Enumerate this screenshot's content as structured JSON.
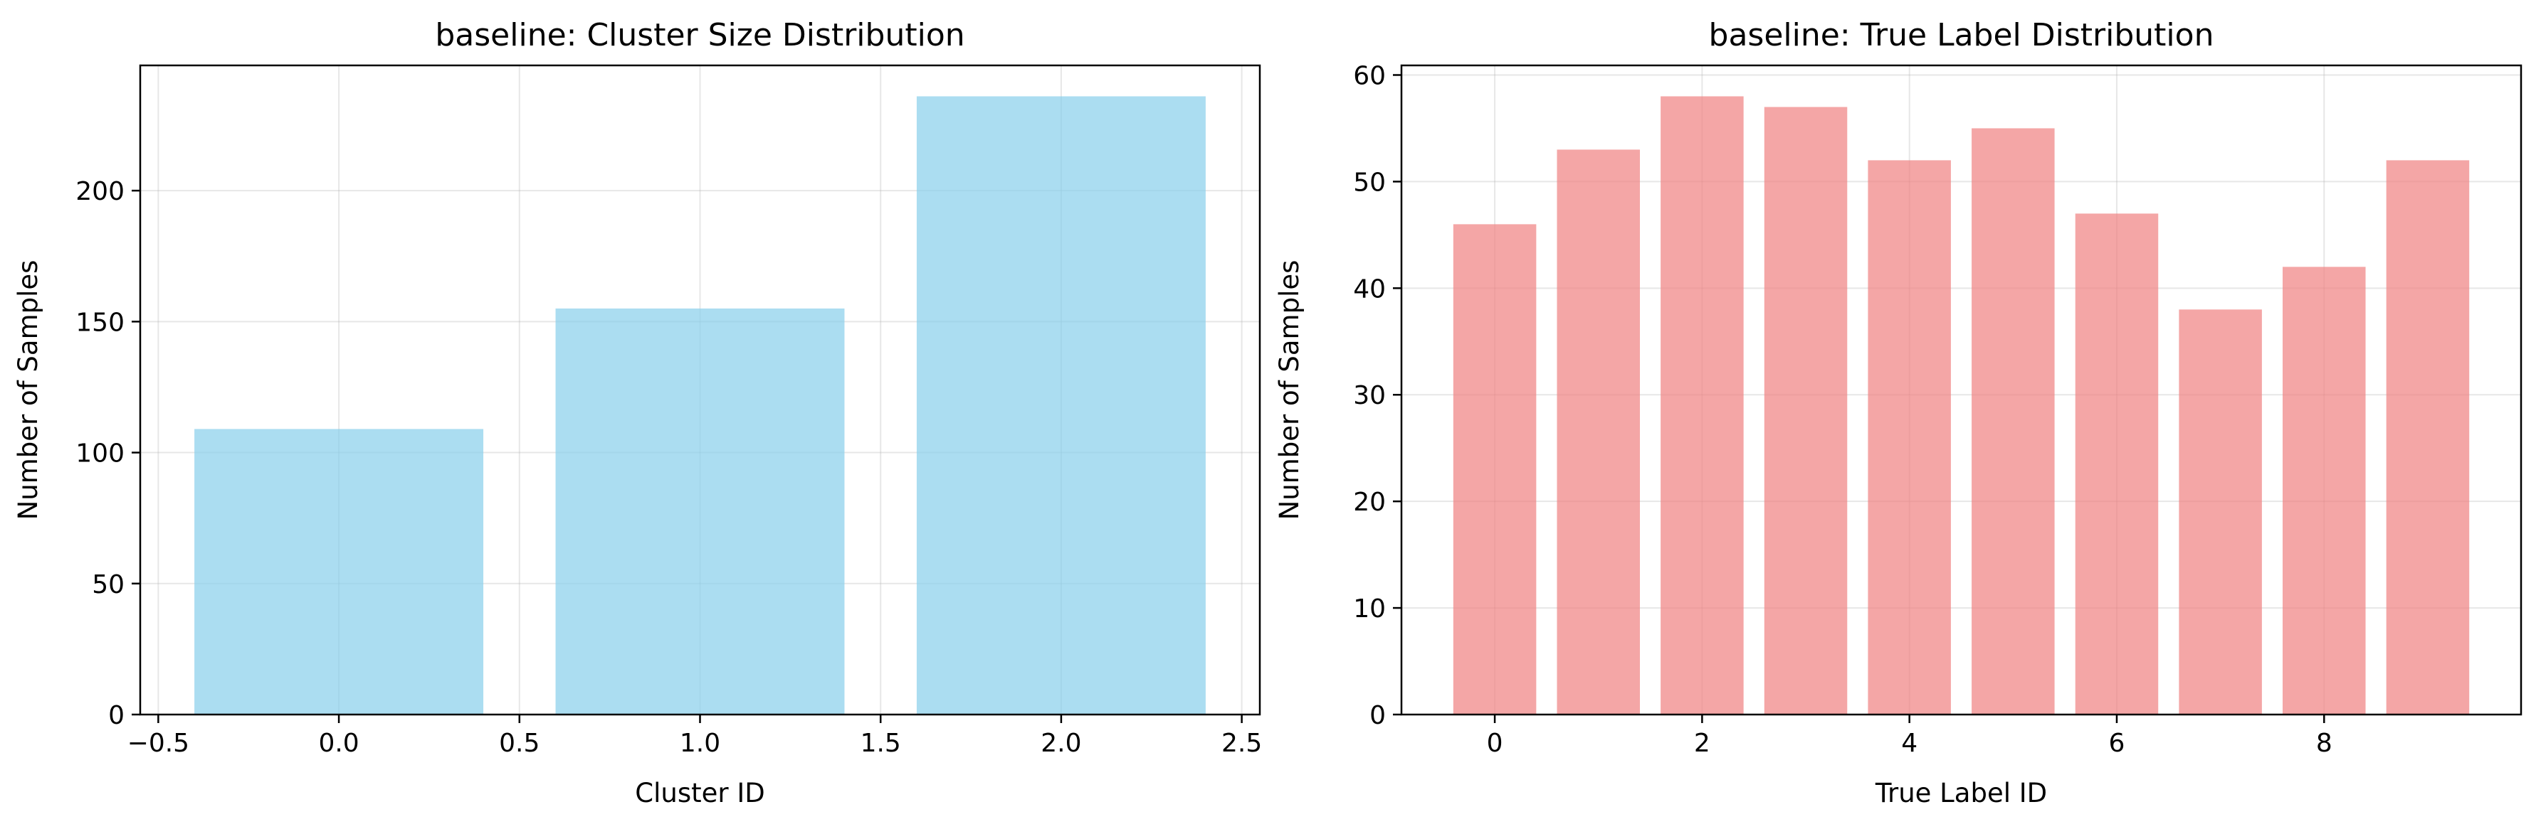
{
  "chart_data": [
    {
      "type": "bar",
      "title": "baseline: Cluster Size Distribution",
      "xlabel": "Cluster ID",
      "ylabel": "Number of Samples",
      "x": [
        0,
        1,
        2
      ],
      "values": [
        109,
        155,
        236
      ],
      "bar_width": 0.8,
      "xlim": [
        -0.55,
        2.55
      ],
      "ylim": [
        0,
        247.8
      ],
      "xticks": [
        -0.5,
        0.0,
        0.5,
        1.0,
        1.5,
        2.0,
        2.5
      ],
      "xtick_labels": [
        "−0.5",
        "0.0",
        "0.5",
        "1.0",
        "1.5",
        "2.0",
        "2.5"
      ],
      "yticks": [
        0,
        50,
        100,
        150,
        200
      ],
      "ytick_labels": [
        "0",
        "50",
        "100",
        "150",
        "200"
      ],
      "color": "#87CEEB",
      "grid": true
    },
    {
      "type": "bar",
      "title": "baseline: True Label Distribution",
      "xlabel": "True Label ID",
      "ylabel": "Number of Samples",
      "x": [
        0,
        1,
        2,
        3,
        4,
        5,
        6,
        7,
        8,
        9
      ],
      "values": [
        46,
        53,
        58,
        57,
        52,
        55,
        47,
        38,
        42,
        52
      ],
      "bar_width": 0.8,
      "xlim": [
        -0.9,
        9.9
      ],
      "ylim": [
        0,
        60.9
      ],
      "xticks": [
        0,
        2,
        4,
        6,
        8
      ],
      "xtick_labels": [
        "0",
        "2",
        "4",
        "6",
        "8"
      ],
      "yticks": [
        0,
        10,
        20,
        30,
        40,
        50,
        60
      ],
      "ytick_labels": [
        "0",
        "10",
        "20",
        "30",
        "40",
        "50",
        "60"
      ],
      "color": "#F08080",
      "grid": true
    }
  ]
}
